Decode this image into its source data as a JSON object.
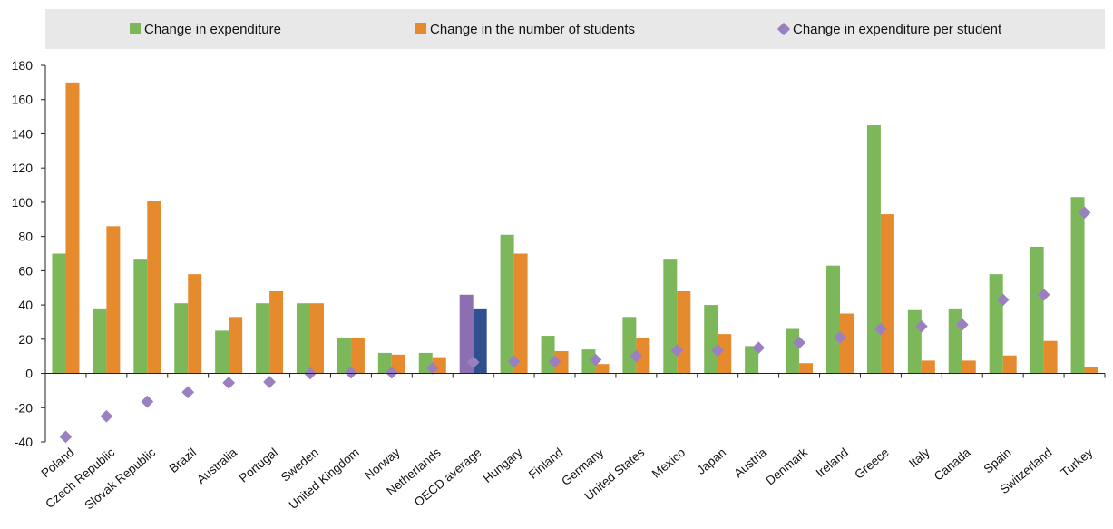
{
  "chart_data": {
    "type": "bar",
    "title": "",
    "xlabel": "",
    "ylabel": "",
    "ylim": [
      -40,
      180
    ],
    "yticks": [
      -40,
      -20,
      0,
      20,
      40,
      60,
      80,
      100,
      120,
      140,
      160,
      180
    ],
    "grid": false,
    "legend_position": "top",
    "categories": [
      "Poland",
      "Czech Republic",
      "Slovak Republic",
      "Brazil",
      "Australia",
      "Portugal",
      "Sweden",
      "United Kingdom",
      "Norway",
      "Netherlands",
      "OECD average",
      "Hungary",
      "Finland",
      "Germany",
      "United States",
      "Mexico",
      "Japan",
      "Austria",
      "Denmark",
      "Ireland",
      "Greece",
      "Italy",
      "Canada",
      "Spain",
      "Switzerland",
      "Turkey"
    ],
    "highlight_category": "OECD average",
    "series": [
      {
        "name": "Change in expenditure",
        "kind": "bar",
        "color": "#7cb85a",
        "highlight_color": "#8c6fb1",
        "values": [
          70,
          38,
          67,
          41,
          25,
          41,
          41,
          21,
          12,
          12,
          46,
          81,
          22,
          14,
          33,
          67,
          40,
          16,
          26,
          63,
          145,
          37,
          38,
          58,
          74,
          103
        ]
      },
      {
        "name": "Change in the number of students",
        "kind": "bar",
        "color": "#e68a2e",
        "highlight_color": "#2f4f8f",
        "values": [
          170,
          86,
          101,
          58,
          33,
          48,
          41,
          21,
          11,
          9.5,
          38,
          70,
          13,
          5.5,
          21,
          48,
          23,
          0,
          6,
          35,
          93,
          7.5,
          7.5,
          10.5,
          19,
          4
        ]
      },
      {
        "name": "Change in expenditure per student",
        "kind": "marker",
        "color": "#9a80c0",
        "values": [
          -37,
          -25,
          -16.5,
          -11,
          -5.5,
          -5,
          0,
          0.5,
          0.5,
          3,
          6.5,
          7,
          7,
          8,
          10,
          13.5,
          13.5,
          15,
          18,
          21,
          26,
          27.5,
          28.5,
          43,
          46,
          94
        ]
      }
    ]
  }
}
